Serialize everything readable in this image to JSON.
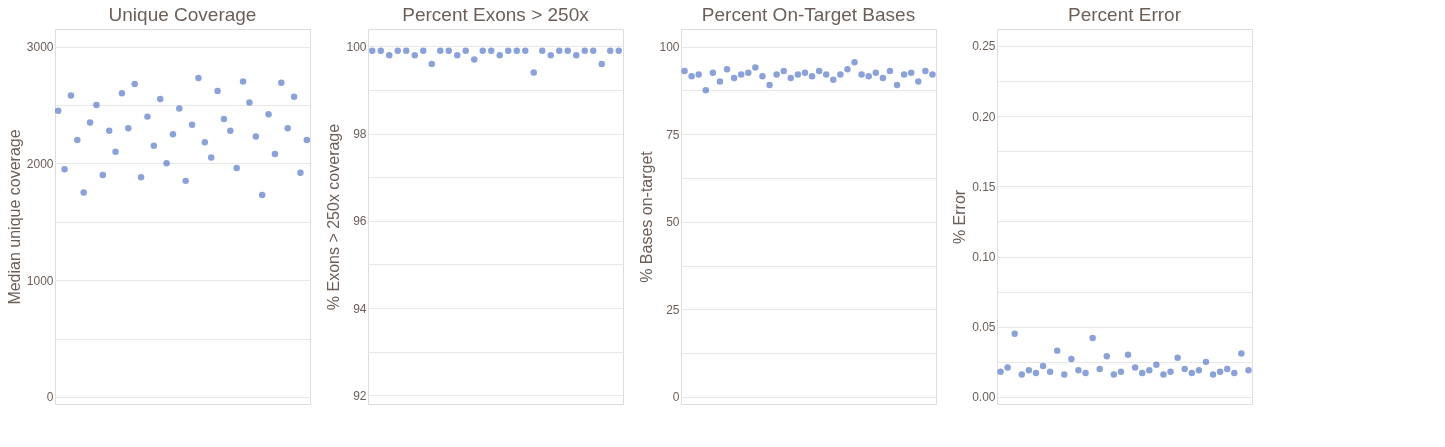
{
  "chart_data": [
    {
      "type": "scatter",
      "title": "Unique Coverage",
      "ylabel": "Median unique coverage",
      "categories": [
        null,
        null,
        null,
        null,
        null,
        null,
        null,
        null,
        null,
        null,
        null,
        null,
        null,
        null,
        null,
        null,
        null,
        null,
        null,
        null,
        null,
        null,
        null,
        null,
        null,
        null,
        null,
        null,
        null,
        null,
        null,
        null,
        null,
        null,
        null,
        null,
        null,
        null,
        null,
        null
      ],
      "series": [
        {
          "color": "#2a56b8",
          "values": [
            2450,
            1950,
            2580,
            2200,
            1750,
            2350,
            2500,
            1900,
            2280,
            2100,
            2600,
            2300,
            2680,
            1880,
            2400,
            2150,
            2550,
            2000,
            2250,
            2470,
            1850,
            2330,
            2730,
            2180,
            2050,
            2620,
            2380,
            2280,
            1960,
            2700,
            2520,
            2230,
            1730,
            2420,
            2080,
            2690,
            2300,
            2570,
            1920,
            2200
          ]
        }
      ],
      "ylim": [
        -60,
        3150
      ],
      "yticks": [
        0,
        {
          "value": 500,
          "label": null
        },
        1000,
        {
          "value": 1500,
          "label": null
        },
        2000,
        {
          "value": 2500,
          "label": null
        },
        3000
      ],
      "tick_labels": "y",
      "grid": "y",
      "marker": "circle",
      "legend": false
    },
    {
      "type": "scatter",
      "title": "Percent Exons > 250x",
      "ylabel": "% Exons > 250x coverage",
      "categories": [
        null,
        null,
        null,
        null,
        null,
        null,
        null,
        null,
        null,
        null,
        null,
        null,
        null,
        null,
        null,
        null,
        null,
        null,
        null,
        null,
        null,
        null,
        null,
        null,
        null,
        null,
        null,
        null,
        null,
        null
      ],
      "series": [
        {
          "color": "#2a56b8",
          "values": [
            99.9,
            99.9,
            99.8,
            99.9,
            99.9,
            99.8,
            99.9,
            99.6,
            99.9,
            99.9,
            99.8,
            99.9,
            99.7,
            99.9,
            99.9,
            99.8,
            99.9,
            99.9,
            99.9,
            99.4,
            99.9,
            99.8,
            99.9,
            99.9,
            99.8,
            99.9,
            99.9,
            99.6,
            99.9,
            99.9
          ]
        }
      ],
      "ylim": [
        91.8,
        100.4
      ],
      "yticks": [
        92,
        {
          "value": 93,
          "label": null
        },
        94,
        {
          "value": 95,
          "label": null
        },
        96,
        {
          "value": 97,
          "label": null
        },
        98,
        {
          "value": 99,
          "label": null
        },
        100
      ],
      "tick_labels": "y",
      "grid": "y",
      "marker": "circle",
      "legend": false
    },
    {
      "type": "scatter",
      "title": "Percent On-Target Bases",
      "ylabel": "% Bases on-target",
      "categories": [
        null,
        null,
        null,
        null,
        null,
        null,
        null,
        null,
        null,
        null,
        null,
        null,
        null,
        null,
        null,
        null,
        null,
        null,
        null,
        null,
        null,
        null,
        null,
        null,
        null,
        null,
        null,
        null,
        null,
        null,
        null,
        null,
        null,
        null,
        null,
        null
      ],
      "series": [
        {
          "color": "#2a56b8",
          "values": [
            93,
            91.5,
            92,
            87.5,
            92.5,
            90,
            93.5,
            91,
            92,
            92.5,
            94,
            91.5,
            89,
            92,
            93,
            91,
            92,
            92.5,
            91.5,
            93,
            92,
            90.5,
            92,
            93.5,
            95.5,
            92,
            91.5,
            92.5,
            91,
            93,
            89,
            92,
            92.5,
            90,
            93,
            92
          ]
        }
      ],
      "ylim": [
        -2,
        105
      ],
      "yticks": [
        0,
        {
          "value": 12.5,
          "label": null
        },
        25,
        {
          "value": 37.5,
          "label": null
        },
        50,
        {
          "value": 62.5,
          "label": null
        },
        75,
        {
          "value": 87.5,
          "label": null
        },
        100
      ],
      "tick_labels": "y",
      "grid": "y",
      "marker": "circle",
      "legend": false
    },
    {
      "type": "scatter",
      "title": "Percent Error",
      "ylabel": "% Error",
      "categories": [
        null,
        null,
        null,
        null,
        null,
        null,
        null,
        null,
        null,
        null,
        null,
        null,
        null,
        null,
        null,
        null,
        null,
        null,
        null,
        null,
        null,
        null,
        null,
        null,
        null,
        null,
        null,
        null,
        null,
        null,
        null,
        null,
        null,
        null,
        null,
        null
      ],
      "series": [
        {
          "color": "#2a56b8",
          "values": [
            0.018,
            0.021,
            0.045,
            0.016,
            0.019,
            0.017,
            0.022,
            0.018,
            0.033,
            0.016,
            0.027,
            0.019,
            0.017,
            0.042,
            0.02,
            0.029,
            0.016,
            0.018,
            0.03,
            0.021,
            0.017,
            0.019,
            0.023,
            0.016,
            0.018,
            0.028,
            0.02,
            0.017,
            0.019,
            0.025,
            0.016,
            0.018,
            0.02,
            0.017,
            0.031,
            0.019
          ]
        }
      ],
      "ylim": [
        -0.005,
        0.262
      ],
      "yticks": [
        {
          "value": 0,
          "label": "0.00"
        },
        {
          "value": 0.025,
          "label": null
        },
        {
          "value": 0.05,
          "label": "0.05"
        },
        {
          "value": 0.075,
          "label": null
        },
        {
          "value": 0.1,
          "label": "0.10"
        },
        {
          "value": 0.125,
          "label": null
        },
        {
          "value": 0.15,
          "label": "0.15"
        },
        {
          "value": 0.175,
          "label": null
        },
        {
          "value": 0.2,
          "label": "0.20"
        },
        {
          "value": 0.225,
          "label": null
        },
        {
          "value": 0.25,
          "label": "0.25"
        }
      ],
      "tick_labels": "y",
      "grid": "y",
      "marker": "circle",
      "legend": false
    }
  ]
}
